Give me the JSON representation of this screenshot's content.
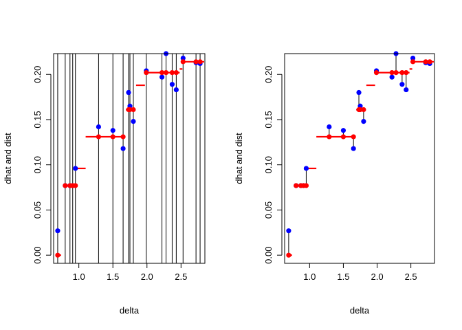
{
  "chart_data": [
    {
      "type": "scatter",
      "xlabel": "delta",
      "ylabel": "dhat and dist",
      "xlim": [
        0.63,
        2.85
      ],
      "ylim": [
        -0.009,
        0.223
      ],
      "xticks": [
        1.0,
        1.5,
        2.0,
        2.5
      ],
      "xtick_labels": [
        "1.0",
        "1.5",
        "2.0",
        "2.5"
      ],
      "yticks": [
        0.0,
        0.05,
        0.1,
        0.15,
        0.2
      ],
      "ytick_labels": [
        "0.00",
        "0.05",
        "0.10",
        "0.15",
        "0.20"
      ],
      "connectors": "vertical-full",
      "series": [
        {
          "type": "scatter",
          "color": "#0000ff",
          "x": [
            0.69,
            0.8,
            0.87,
            0.91,
            0.95,
            1.29,
            1.5,
            1.65,
            1.73,
            1.75,
            1.8,
            1.99,
            2.22,
            2.28,
            2.37,
            2.43,
            2.53,
            2.72,
            2.78
          ],
          "y": [
            0.027,
            0.077,
            0.077,
            0.077,
            0.096,
            0.142,
            0.138,
            0.118,
            0.18,
            0.165,
            0.148,
            0.204,
            0.197,
            0.223,
            0.189,
            0.183,
            0.218,
            0.213,
            0.212
          ]
        },
        {
          "type": "scatter",
          "color": "#ff0000",
          "x": [
            0.69,
            0.8,
            0.87,
            0.91,
            0.95,
            1.29,
            1.5,
            1.65,
            1.73,
            1.75,
            1.8,
            1.99,
            2.22,
            2.28,
            2.37,
            2.43,
            2.53,
            2.72,
            2.78
          ],
          "y": [
            0.0,
            0.077,
            0.077,
            0.077,
            0.077,
            0.131,
            0.131,
            0.131,
            0.161,
            0.161,
            0.161,
            0.202,
            0.202,
            0.202,
            0.202,
            0.202,
            0.214,
            0.214,
            0.214
          ]
        },
        {
          "type": "step",
          "color": "#ff0000",
          "segments": [
            [
              0.66,
              0.74,
              0.0
            ],
            [
              0.77,
              0.95,
              0.077
            ],
            [
              0.95,
              1.1,
              0.096
            ],
            [
              1.1,
              1.66,
              0.131
            ],
            [
              1.69,
              1.82,
              0.161
            ],
            [
              1.84,
              1.97,
              0.188
            ],
            [
              1.97,
              2.48,
              0.202
            ],
            [
              2.48,
              2.52,
              0.206
            ],
            [
              2.52,
              2.85,
              0.214
            ]
          ]
        }
      ]
    },
    {
      "type": "scatter",
      "xlabel": "delta",
      "ylabel": "dhat and dist",
      "xlim": [
        0.63,
        2.85
      ],
      "ylim": [
        -0.009,
        0.223
      ],
      "xticks": [
        1.0,
        1.5,
        2.0,
        2.5
      ],
      "xtick_labels": [
        "1.0",
        "1.5",
        "2.0",
        "2.5"
      ],
      "yticks": [
        0.0,
        0.05,
        0.1,
        0.15,
        0.2
      ],
      "ytick_labels": [
        "0.00",
        "0.05",
        "0.10",
        "0.15",
        "0.20"
      ],
      "connectors": "segments",
      "series": [
        {
          "type": "scatter",
          "color": "#0000ff",
          "x": [
            0.69,
            0.8,
            0.87,
            0.91,
            0.95,
            1.29,
            1.5,
            1.65,
            1.73,
            1.75,
            1.8,
            1.99,
            2.22,
            2.28,
            2.37,
            2.43,
            2.53,
            2.72,
            2.78
          ],
          "y": [
            0.027,
            0.077,
            0.077,
            0.077,
            0.096,
            0.142,
            0.138,
            0.118,
            0.18,
            0.165,
            0.148,
            0.204,
            0.197,
            0.223,
            0.189,
            0.183,
            0.218,
            0.213,
            0.212
          ]
        },
        {
          "type": "scatter",
          "color": "#ff0000",
          "x": [
            0.69,
            0.8,
            0.87,
            0.91,
            0.95,
            1.29,
            1.5,
            1.65,
            1.73,
            1.75,
            1.8,
            1.99,
            2.22,
            2.28,
            2.37,
            2.43,
            2.53,
            2.72,
            2.78
          ],
          "y": [
            0.0,
            0.077,
            0.077,
            0.077,
            0.077,
            0.131,
            0.131,
            0.131,
            0.161,
            0.161,
            0.161,
            0.202,
            0.202,
            0.202,
            0.202,
            0.202,
            0.214,
            0.214,
            0.214
          ]
        },
        {
          "type": "step",
          "color": "#ff0000",
          "segments": [
            [
              0.66,
              0.74,
              0.0
            ],
            [
              0.77,
              0.95,
              0.077
            ],
            [
              0.95,
              1.1,
              0.096
            ],
            [
              1.1,
              1.66,
              0.131
            ],
            [
              1.69,
              1.82,
              0.161
            ],
            [
              1.84,
              1.97,
              0.188
            ],
            [
              1.97,
              2.48,
              0.202
            ],
            [
              2.48,
              2.52,
              0.206
            ],
            [
              2.52,
              2.85,
              0.214
            ]
          ]
        }
      ]
    }
  ]
}
